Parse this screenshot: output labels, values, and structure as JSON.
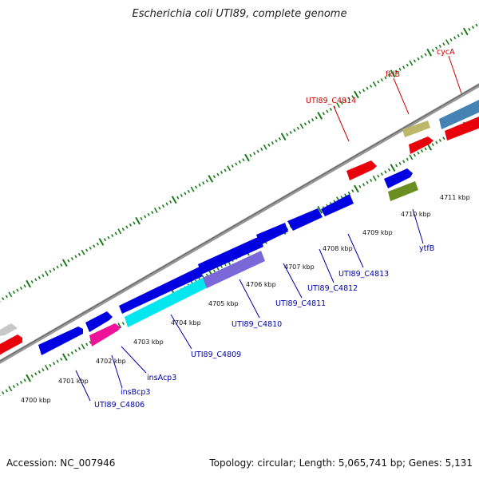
{
  "title": "Escherichia coli UTI89, complete genome",
  "footer": {
    "accession": "Accession: NC_007946",
    "summary": "Topology: circular; Length: 5,065,741 bp; Genes: 5,131"
  },
  "colors": {
    "forward_cds": "#e8000b",
    "reverse_cds": "#0000e0",
    "label_forward": "#cc0000",
    "label_reverse": "#0000aa",
    "backbone": "#888888",
    "ticks": "#1a7a1a",
    "cyan_feature": "#00e5ee",
    "magenta_feature": "#ee1199",
    "purple_feature": "#7b68d8",
    "khaki_feature": "#bdb76b",
    "olive_feature": "#6b8e23",
    "steel_feature": "#4682b4",
    "gray_feature": "#c8c8c8"
  },
  "kbp_ticks": [
    {
      "text": "4700 kbp"
    },
    {
      "text": "4701 kbp"
    },
    {
      "text": "4702 kbp"
    },
    {
      "text": "4703 kbp"
    },
    {
      "text": "4704 kbp"
    },
    {
      "text": "4705 kbp"
    },
    {
      "text": "4706 kbp"
    },
    {
      "text": "4707 kbp"
    },
    {
      "text": "4708 kbp"
    },
    {
      "text": "4709 kbp"
    },
    {
      "text": "4710 kbp"
    },
    {
      "text": "4711 kbp"
    }
  ],
  "gene_labels": {
    "forward": [
      "cycA",
      "fklB",
      "UTI89_C4814"
    ],
    "reverse": [
      "UTI89_C4806",
      "insBcp3",
      "insAcp3",
      "UTI89_C4809",
      "UTI89_C4810",
      "UTI89_C4811",
      "UTI89_C4812",
      "UTI89_C4813",
      "ytfB"
    ]
  }
}
